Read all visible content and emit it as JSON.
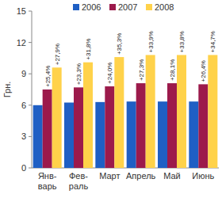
{
  "chart_data": {
    "type": "bar",
    "y_label": "Грн.",
    "categories": [
      "Янв-\nварь",
      "Фев-\nраль",
      "Март",
      "Апрель",
      "Май",
      "Июнь"
    ],
    "series": [
      {
        "name": "2006",
        "color": "#1f5fc4",
        "values": [
          6.0,
          6.25,
          6.3,
          6.35,
          6.35,
          6.35
        ]
      },
      {
        "name": "2007",
        "color": "#9c1a4b",
        "values": [
          7.5,
          7.7,
          7.8,
          8.1,
          8.1,
          8.0
        ],
        "annotations": [
          "+25,4%",
          "+23,3%",
          "+24,0%",
          "+27,3%",
          "+28,1%",
          "+26,4%"
        ]
      },
      {
        "name": "2008",
        "color": "#ffd24a",
        "values": [
          9.6,
          10.1,
          10.6,
          10.8,
          10.8,
          10.8
        ],
        "annotations": [
          "+27,9%",
          "+31,8%",
          "+35,3%",
          "+33,9%",
          "+33,8%",
          "+34,7%"
        ]
      }
    ],
    "ylim": [
      0,
      15
    ],
    "yticks": [
      0,
      3,
      6,
      9,
      12,
      15
    ],
    "grid": false,
    "legend": "top"
  }
}
